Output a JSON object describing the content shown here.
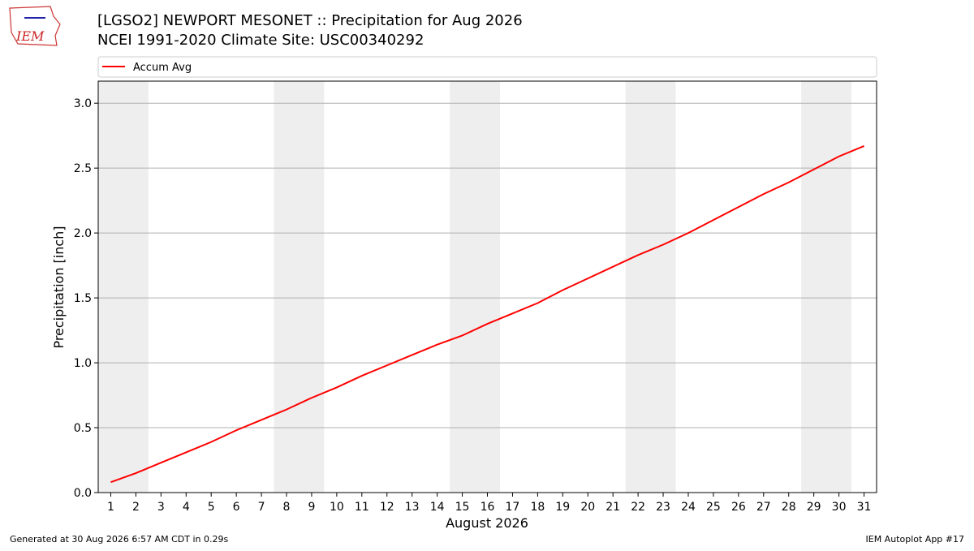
{
  "logo_text": "IEM",
  "chart_data": {
    "type": "line",
    "title": "[LGSO2] NEWPORT MESONET :: Precipitation for Aug 2026",
    "subtitle": "NCEI 1991-2020 Climate Site: USC00340292",
    "x_label": "August 2026",
    "y_label": "Precipitation [inch]",
    "x": [
      1,
      2,
      3,
      4,
      5,
      6,
      7,
      8,
      9,
      10,
      11,
      12,
      13,
      14,
      15,
      16,
      17,
      18,
      19,
      20,
      21,
      22,
      23,
      24,
      25,
      26,
      27,
      28,
      29,
      30,
      31
    ],
    "series": [
      {
        "name": "Accum Avg",
        "color": "#ff0000",
        "values": [
          0.08,
          0.15,
          0.23,
          0.31,
          0.39,
          0.48,
          0.56,
          0.64,
          0.73,
          0.81,
          0.9,
          0.98,
          1.06,
          1.14,
          1.21,
          1.3,
          1.38,
          1.46,
          1.56,
          1.65,
          1.74,
          1.83,
          1.91,
          2.0,
          2.1,
          2.2,
          2.3,
          2.39,
          2.49,
          2.59,
          2.67
        ]
      }
    ],
    "xlim": [
      0.5,
      31.5
    ],
    "ylim": [
      0,
      3.17
    ],
    "xticks": [
      1,
      2,
      3,
      4,
      5,
      6,
      7,
      8,
      9,
      10,
      11,
      12,
      13,
      14,
      15,
      16,
      17,
      18,
      19,
      20,
      21,
      22,
      23,
      24,
      25,
      26,
      27,
      28,
      29,
      30,
      31
    ],
    "yticks": [
      {
        "value": 0,
        "label": "0.0"
      },
      0.5,
      {
        "value": 1,
        "label": "1.0"
      },
      1.5,
      {
        "value": 2,
        "label": "2.0"
      },
      2.5,
      {
        "value": 3,
        "label": "3.0"
      }
    ],
    "shaded_spans": [
      [
        0.5,
        2.5
      ],
      [
        7.5,
        9.5
      ],
      [
        14.5,
        16.5
      ],
      [
        21.5,
        23.5
      ],
      [
        28.5,
        30.5
      ]
    ],
    "shade_color": "#eeeeee",
    "grid": true,
    "legend": "top",
    "footer_left": "Generated at 30 Aug 2026 6:57 AM CDT in 0.29s",
    "footer_right": "IEM Autoplot App #17"
  }
}
